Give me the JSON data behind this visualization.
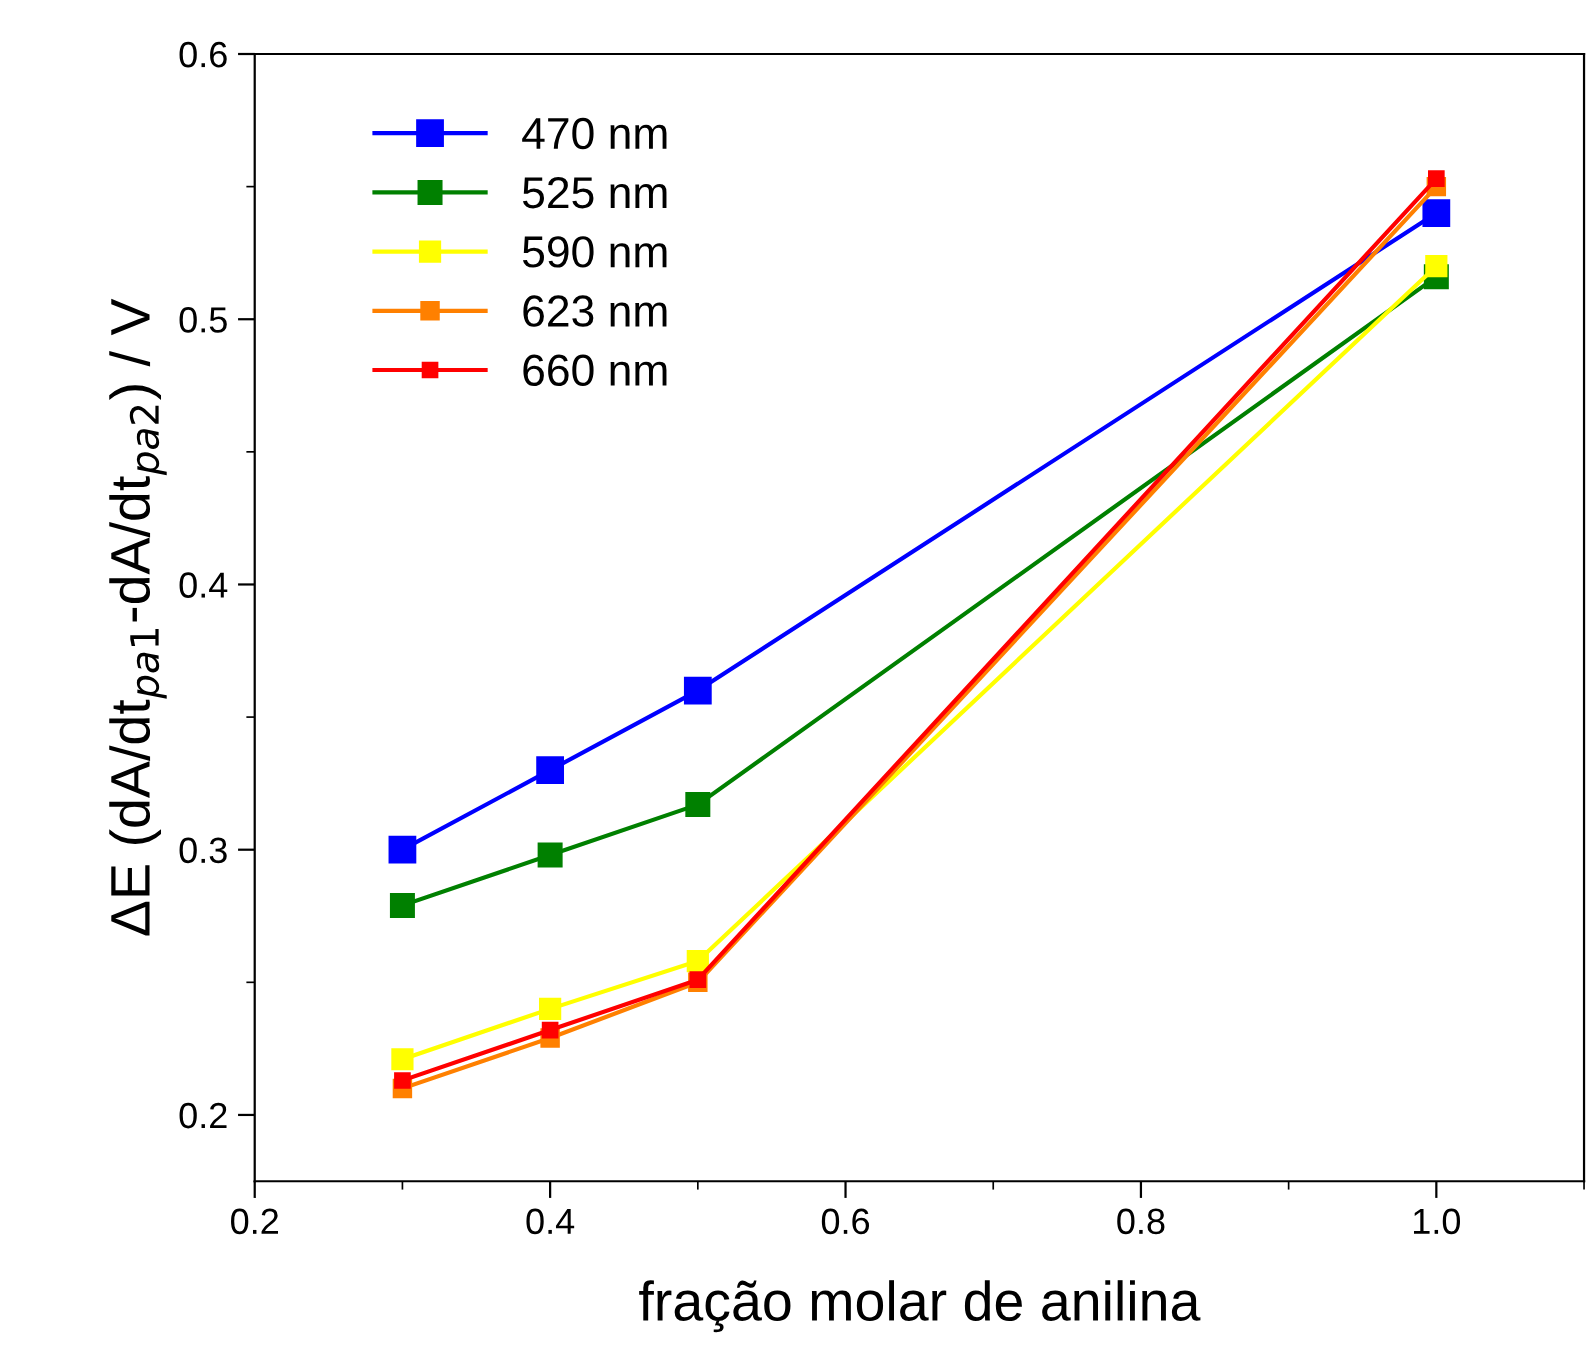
{
  "chart_data": {
    "type": "line",
    "xlabel": "fração molar de anilina",
    "ylabel": "ΔE (dA/dt$_{pa1}$-dA/dt$_{pa2}$) / V",
    "x": [
      0.3,
      0.4,
      0.5,
      1.0
    ],
    "series": [
      {
        "name": "470 nm",
        "color": "#0000ff",
        "values": [
          0.3,
          0.33,
          0.36,
          0.54
        ]
      },
      {
        "name": "525 nm",
        "color": "#008000",
        "values": [
          0.279,
          0.298,
          0.317,
          0.516
        ]
      },
      {
        "name": "590 nm",
        "color": "#ffff00",
        "values": [
          0.221,
          0.24,
          0.258,
          0.52
        ]
      },
      {
        "name": "623 nm",
        "color": "#ff8000",
        "values": [
          0.21,
          0.229,
          0.25,
          0.55
        ]
      },
      {
        "name": "660 nm",
        "color": "#ff0000",
        "values": [
          0.213,
          0.232,
          0.251,
          0.553
        ]
      }
    ],
    "xlim": [
      0.2,
      1.1
    ],
    "xticks": [
      {
        "value": 0.2,
        "label": "0.2"
      },
      {
        "value": 0.4,
        "label": "0.4"
      },
      {
        "value": 0.6,
        "label": "0.6"
      },
      {
        "value": 0.8,
        "label": "0.8"
      },
      {
        "value": 1.0,
        "label": "1.0"
      }
    ],
    "ylim": [
      0.175,
      0.6
    ],
    "yticks": [
      {
        "value": 0.2,
        "label": "0.2"
      },
      {
        "value": 0.3,
        "label": "0.3"
      },
      {
        "value": 0.4,
        "label": "0.4"
      },
      {
        "value": 0.5,
        "label": "0.5"
      },
      {
        "value": 0.6,
        "label": "0.6"
      }
    ],
    "grid": false,
    "legend": "top left",
    "marker": "square",
    "line_style": "solid"
  }
}
